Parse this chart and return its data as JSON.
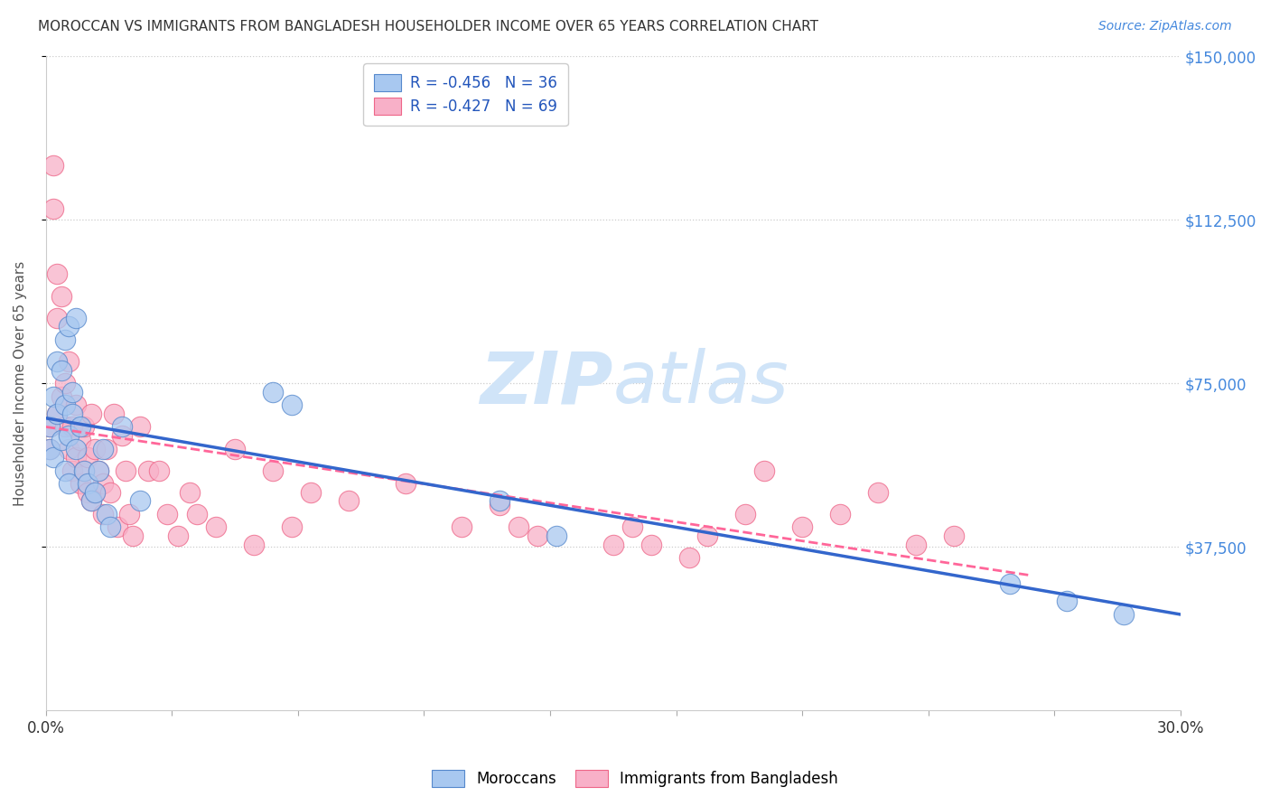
{
  "title": "MOROCCAN VS IMMIGRANTS FROM BANGLADESH HOUSEHOLDER INCOME OVER 65 YEARS CORRELATION CHART",
  "source": "Source: ZipAtlas.com",
  "ylabel": "Householder Income Over 65 years",
  "xmin": 0.0,
  "xmax": 0.3,
  "ymin": 0,
  "ymax": 150000,
  "yticks": [
    37500,
    75000,
    112500,
    150000
  ],
  "ytick_labels": [
    "$37,500",
    "$75,000",
    "$112,500",
    "$150,000"
  ],
  "xticks": [
    0.0,
    0.03333,
    0.06667,
    0.1,
    0.13333,
    0.16667,
    0.2,
    0.23333,
    0.26667,
    0.3
  ],
  "xtick_labels_show": [
    "0.0%",
    "",
    "",
    "",
    "",
    "",
    "",
    "",
    "",
    "30.0%"
  ],
  "moroccan_color": "#a8c8f0",
  "bangladesh_color": "#f8b0c8",
  "moroccan_edge": "#5588cc",
  "bangladesh_edge": "#ee6688",
  "trendline_moroccan": "#3366cc",
  "trendline_bangladesh": "#ff6699",
  "watermark_zip": "ZIP",
  "watermark_atlas": "atlas",
  "watermark_color": "#d0e4f8",
  "legend_label_moroccan": "R = -0.456   N = 36",
  "legend_label_bangladesh": "R = -0.427   N = 69",
  "moroccan_x": [
    0.001,
    0.001,
    0.002,
    0.002,
    0.003,
    0.003,
    0.004,
    0.004,
    0.005,
    0.005,
    0.005,
    0.006,
    0.006,
    0.006,
    0.007,
    0.007,
    0.008,
    0.008,
    0.009,
    0.01,
    0.011,
    0.012,
    0.013,
    0.014,
    0.015,
    0.016,
    0.017,
    0.02,
    0.025,
    0.06,
    0.065,
    0.12,
    0.135,
    0.255,
    0.27,
    0.285
  ],
  "moroccan_y": [
    65000,
    60000,
    72000,
    58000,
    80000,
    68000,
    78000,
    62000,
    85000,
    70000,
    55000,
    88000,
    63000,
    52000,
    73000,
    68000,
    90000,
    60000,
    65000,
    55000,
    52000,
    48000,
    50000,
    55000,
    60000,
    45000,
    42000,
    65000,
    48000,
    73000,
    70000,
    48000,
    40000,
    29000,
    25000,
    22000
  ],
  "bangladesh_x": [
    0.001,
    0.001,
    0.002,
    0.002,
    0.003,
    0.003,
    0.003,
    0.004,
    0.004,
    0.005,
    0.005,
    0.006,
    0.006,
    0.007,
    0.007,
    0.008,
    0.008,
    0.009,
    0.009,
    0.01,
    0.01,
    0.011,
    0.011,
    0.012,
    0.012,
    0.013,
    0.013,
    0.014,
    0.015,
    0.015,
    0.016,
    0.017,
    0.018,
    0.019,
    0.02,
    0.021,
    0.022,
    0.023,
    0.025,
    0.027,
    0.03,
    0.032,
    0.035,
    0.038,
    0.04,
    0.045,
    0.05,
    0.055,
    0.06,
    0.065,
    0.07,
    0.08,
    0.095,
    0.11,
    0.12,
    0.125,
    0.13,
    0.15,
    0.155,
    0.16,
    0.17,
    0.175,
    0.185,
    0.19,
    0.2,
    0.21,
    0.22,
    0.23,
    0.24
  ],
  "bangladesh_y": [
    65000,
    60000,
    125000,
    115000,
    100000,
    90000,
    68000,
    95000,
    72000,
    75000,
    65000,
    80000,
    60000,
    65000,
    55000,
    70000,
    58000,
    62000,
    52000,
    65000,
    55000,
    58000,
    50000,
    68000,
    48000,
    60000,
    50000,
    55000,
    52000,
    45000,
    60000,
    50000,
    68000,
    42000,
    63000,
    55000,
    45000,
    40000,
    65000,
    55000,
    55000,
    45000,
    40000,
    50000,
    45000,
    42000,
    60000,
    38000,
    55000,
    42000,
    50000,
    48000,
    52000,
    42000,
    47000,
    42000,
    40000,
    38000,
    42000,
    38000,
    35000,
    40000,
    45000,
    55000,
    42000,
    45000,
    50000,
    38000,
    40000
  ],
  "moroccan_trend_x0": 0.0,
  "moroccan_trend_y0": 67000,
  "moroccan_trend_x1": 0.3,
  "moroccan_trend_y1": 22000,
  "bangladesh_trend_x0": 0.0,
  "bangladesh_trend_y0": 65000,
  "bangladesh_trend_x1": 0.26,
  "bangladesh_trend_y1": 31000
}
